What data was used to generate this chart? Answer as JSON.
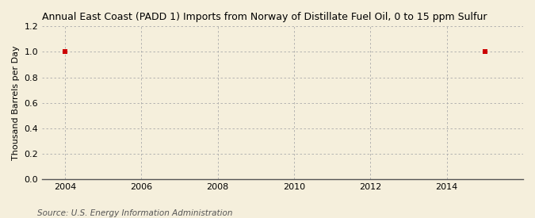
{
  "title": "Annual East Coast (PADD 1) Imports from Norway of Distillate Fuel Oil, 0 to 15 ppm Sulfur",
  "ylabel": "Thousand Barrels per Day",
  "source": "Source: U.S. Energy Information Administration",
  "background_color": "#f5efdc",
  "plot_background_color": "#f5efdc",
  "data_points": [
    {
      "year": 2004,
      "value": 1.0
    },
    {
      "year": 2015,
      "value": 1.0
    }
  ],
  "marker_color": "#cc0000",
  "marker_size": 4,
  "xlim": [
    2003.4,
    2016.0
  ],
  "ylim": [
    0.0,
    1.2
  ],
  "xticks": [
    2004,
    2006,
    2008,
    2010,
    2012,
    2014
  ],
  "yticks": [
    0.0,
    0.2,
    0.4,
    0.6,
    0.8,
    1.0,
    1.2
  ],
  "grid_color": "#aaaaaa",
  "title_fontsize": 9,
  "axis_label_fontsize": 8,
  "tick_fontsize": 8,
  "source_fontsize": 7.5
}
